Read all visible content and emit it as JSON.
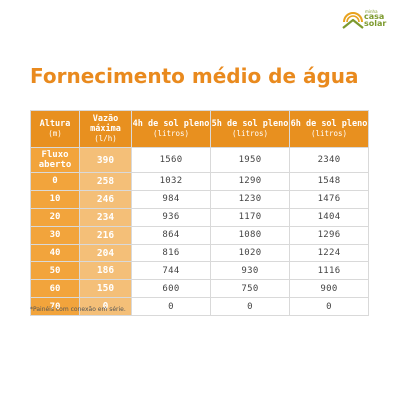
{
  "logo": {
    "small_text": "minha",
    "line1": "casa",
    "line2": "solar"
  },
  "title": "Fornecimento médio de água",
  "table": {
    "headers": [
      {
        "label": "Altura",
        "unit": "(m)"
      },
      {
        "label": "Vazão máxima",
        "unit": "(l/h)"
      },
      {
        "label": "4h de sol pleno",
        "unit": "(litros)"
      },
      {
        "label": "5h de sol pleno",
        "unit": "(litros)"
      },
      {
        "label": "6h de sol pleno",
        "unit": "(litros)"
      }
    ],
    "rows": [
      [
        "Fluxo aberto",
        "390",
        "1560",
        "1950",
        "2340"
      ],
      [
        "0",
        "258",
        "1032",
        "1290",
        "1548"
      ],
      [
        "10",
        "246",
        "984",
        "1230",
        "1476"
      ],
      [
        "20",
        "234",
        "936",
        "1170",
        "1404"
      ],
      [
        "30",
        "216",
        "864",
        "1080",
        "1296"
      ],
      [
        "40",
        "204",
        "816",
        "1020",
        "1224"
      ],
      [
        "50",
        "186",
        "744",
        "930",
        "1116"
      ],
      [
        "60",
        "150",
        "600",
        "750",
        "900"
      ],
      [
        "70",
        "0",
        "0",
        "0",
        "0"
      ]
    ]
  },
  "footnote": "*Painéis com conexão em série.",
  "colors": {
    "accent": "#e98a1e",
    "header_bg": "#e8901f",
    "altura_bg": "#f2a43c",
    "vazao_bg": "#f4bf78",
    "logo_green": "#7d9a2e"
  }
}
